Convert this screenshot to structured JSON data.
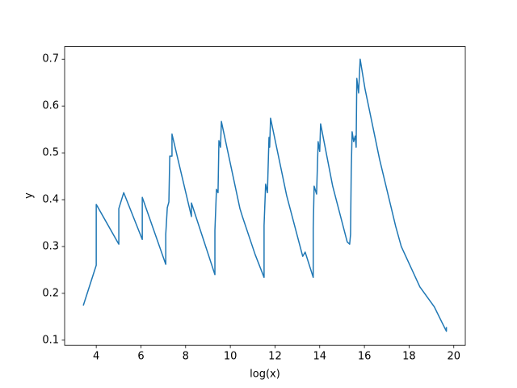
{
  "chart_data": {
    "type": "line",
    "xlabel": "log(x)",
    "ylabel": "y",
    "color": "#1f77b4",
    "x": [
      3.42,
      4.0,
      4.0,
      5.01,
      5.01,
      5.23,
      6.06,
      6.06,
      7.11,
      7.11,
      7.18,
      7.25,
      7.29,
      7.39,
      7.39,
      8.26,
      8.26,
      9.31,
      9.31,
      9.38,
      9.45,
      9.49,
      9.56,
      9.6,
      10.43,
      10.54,
      11.11,
      11.51,
      11.51,
      11.58,
      11.66,
      11.73,
      11.76,
      11.8,
      12.52,
      13.24,
      13.35,
      13.71,
      13.71,
      13.75,
      13.86,
      13.93,
      14.0,
      14.04,
      14.58,
      15.23,
      15.34,
      15.38,
      15.41,
      15.45,
      15.52,
      15.59,
      15.63,
      15.66,
      15.74,
      15.81,
      16.03,
      16.68,
      17.4,
      17.65,
      18.48,
      19.13,
      19.49,
      19.67,
      19.67
    ],
    "values": [
      0.174,
      0.26,
      0.39,
      0.305,
      0.381,
      0.415,
      0.315,
      0.405,
      0.262,
      0.326,
      0.383,
      0.395,
      0.493,
      0.493,
      0.54,
      0.364,
      0.393,
      0.24,
      0.334,
      0.422,
      0.415,
      0.526,
      0.512,
      0.567,
      0.381,
      0.364,
      0.283,
      0.234,
      0.345,
      0.433,
      0.415,
      0.533,
      0.512,
      0.574,
      0.409,
      0.279,
      0.288,
      0.234,
      0.338,
      0.429,
      0.412,
      0.524,
      0.503,
      0.562,
      0.429,
      0.31,
      0.305,
      0.326,
      0.459,
      0.545,
      0.524,
      0.536,
      0.512,
      0.659,
      0.628,
      0.7,
      0.636,
      0.486,
      0.343,
      0.3,
      0.214,
      0.171,
      0.136,
      0.119,
      0.128
    ],
    "xlim": [
      2.585,
      20.515
    ],
    "ylim": [
      0.089,
      0.727
    ],
    "xticks": [
      4,
      6,
      8,
      10,
      12,
      14,
      16,
      18,
      20
    ],
    "yticks": [
      0.1,
      0.2,
      0.3,
      0.4,
      0.5,
      0.6,
      0.7
    ]
  }
}
